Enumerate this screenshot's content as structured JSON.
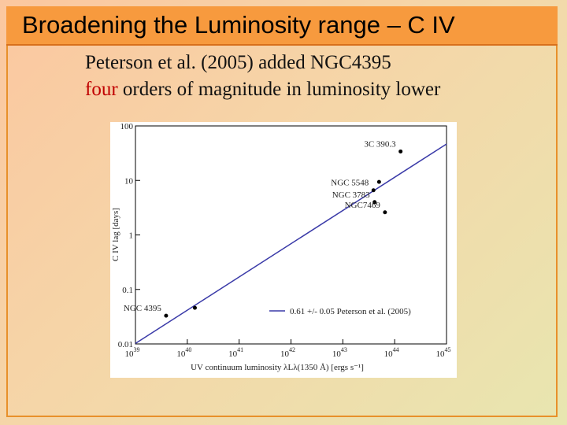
{
  "slide": {
    "title": "Broadening the Luminosity range – C IV",
    "line1": "Peterson et al. (2005)  added NGC4395",
    "line2": {
      "highlight": "four",
      "rest": " orders of magnitude in luminosity lower"
    }
  },
  "chart_data": {
    "type": "scatter",
    "xlabel": "UV continuum luminosity λLλ(1350 Å)  [ergs s⁻¹]",
    "ylabel": "C IV lag [days]",
    "xlog": true,
    "ylog": true,
    "xlim": [
      1e+39,
      1e+45
    ],
    "ylim": [
      0.01,
      100
    ],
    "xticks": [
      {
        "value": 1e+39,
        "label": "10",
        "exponent": "39"
      },
      {
        "value": 1e+40,
        "label": "10",
        "exponent": "40"
      },
      {
        "value": 1e+41,
        "label": "10",
        "exponent": "41"
      },
      {
        "value": 1e+42,
        "label": "10",
        "exponent": "42"
      },
      {
        "value": 1e+43,
        "label": "10",
        "exponent": "43"
      },
      {
        "value": 1e+44,
        "label": "10",
        "exponent": "44"
      },
      {
        "value": 1e+45,
        "label": "10",
        "exponent": "45"
      }
    ],
    "yticks": [
      0.01,
      0.1,
      1,
      10,
      100
    ],
    "points": {
      "color": "#000000",
      "x": [
        3.9e+39,
        1.4e+40,
        3.9e+43,
        5e+43,
        4.1e+43,
        6.5e+43,
        1.3e+44
      ],
      "values": [
        0.033,
        0.046,
        6.6,
        9.4,
        4.0,
        2.6,
        34
      ],
      "labels": [
        "NGC 4395",
        null,
        "NGC 5548",
        null,
        "NGC 3783",
        "NGC7469",
        "3C 390.3"
      ]
    },
    "series": [
      {
        "name": "0.61 +/- 0.05 Peterson et al. (2005)",
        "color": "#3a3aa8",
        "x": [
          1e+39,
          1e+45
        ],
        "values": [
          0.0102,
          46.6
        ]
      }
    ]
  }
}
